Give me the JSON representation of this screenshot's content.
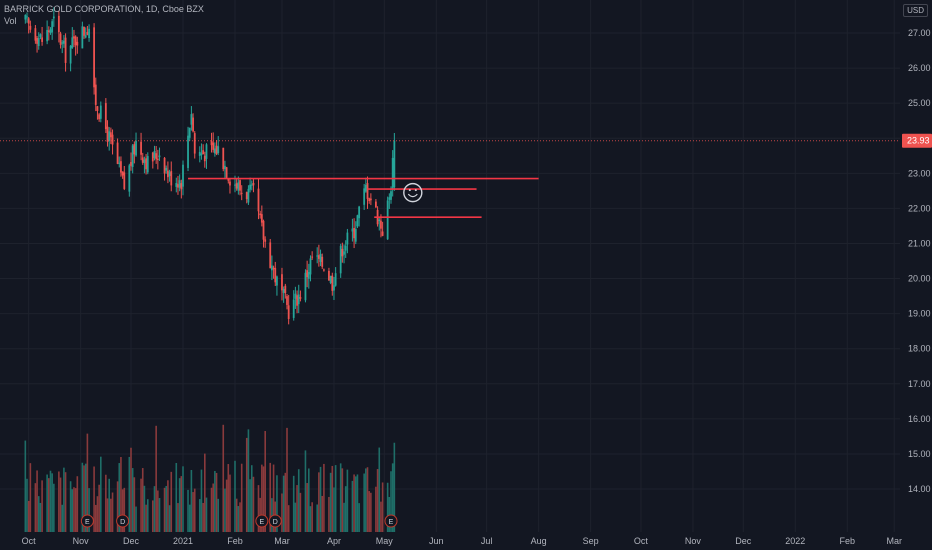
{
  "header": {
    "symbol_line": "BARRICK GOLD CORPORATION, 1D, Cboe BZX",
    "volume_label": "Vol",
    "currency": "USD"
  },
  "colors": {
    "background": "#131722",
    "grid": "#1e222d",
    "up": "#26a69a",
    "down": "#ef5350",
    "up_volume": "#1f6e68",
    "down_volume": "#8a3a3c",
    "drawing": "#f23645",
    "axis_text": "#b2b5be"
  },
  "chart_data": {
    "type": "candlestick",
    "y_ticks": [
      "27.00",
      "26.00",
      "25.00",
      "24.00",
      "23.00",
      "22.00",
      "21.00",
      "20.00",
      "19.00",
      "18.00",
      "17.00",
      "16.00",
      "15.00",
      "14.00"
    ],
    "x_ticks": [
      "Oct",
      "Nov",
      "Dec",
      "2021",
      "Feb",
      "Mar",
      "Apr",
      "May",
      "Jun",
      "Jul",
      "Aug",
      "Sep",
      "Oct",
      "Nov",
      "Dec",
      "2022",
      "Feb",
      "Mar"
    ],
    "ylim": [
      13.3,
      27.8
    ],
    "last_price": "23.93",
    "last_value": 23.93,
    "grid": true,
    "horizontal_lines": [
      {
        "from": "2021-01-04",
        "to": "2021-08-01",
        "value": 22.85
      },
      {
        "from": "2021-04-21",
        "to": "2021-06-25",
        "value": 22.55
      },
      {
        "from": "2021-04-25",
        "to": "2021-06-28",
        "value": 21.75
      }
    ],
    "annotation": {
      "kind": "smiley",
      "date": "2021-05-18",
      "value": 22.45
    },
    "event_markers": [
      {
        "label": "E",
        "date": "2020-11-05"
      },
      {
        "label": "D",
        "date": "2020-11-26"
      },
      {
        "label": "E",
        "date": "2021-02-17"
      },
      {
        "label": "D",
        "date": "2021-02-25"
      },
      {
        "label": "E",
        "date": "2021-05-05"
      }
    ],
    "anchors": [
      [
        "2020-09-29",
        27.3
      ],
      [
        "2020-10-09",
        26.8
      ],
      [
        "2020-10-16",
        27.3
      ],
      [
        "2020-10-23",
        26.4
      ],
      [
        "2020-10-30",
        26.9
      ],
      [
        "2020-11-06",
        27.2
      ],
      [
        "2020-11-09",
        25.2
      ],
      [
        "2020-11-18",
        24.0
      ],
      [
        "2020-11-27",
        22.6
      ],
      [
        "2020-12-04",
        23.9
      ],
      [
        "2020-12-11",
        23.3
      ],
      [
        "2020-12-18",
        23.6
      ],
      [
        "2020-12-24",
        22.9
      ],
      [
        "2020-12-31",
        22.8
      ],
      [
        "2021-01-06",
        24.8
      ],
      [
        "2021-01-08",
        23.6
      ],
      [
        "2021-01-15",
        23.6
      ],
      [
        "2021-01-22",
        23.7
      ],
      [
        "2021-01-29",
        22.9
      ],
      [
        "2021-02-05",
        22.5
      ],
      [
        "2021-02-12",
        22.4
      ],
      [
        "2021-02-18",
        21.2
      ],
      [
        "2021-02-26",
        19.9
      ],
      [
        "2021-03-05",
        19.1
      ],
      [
        "2021-03-12",
        19.6
      ],
      [
        "2021-03-19",
        20.6
      ],
      [
        "2021-03-26",
        20.4
      ],
      [
        "2021-03-31",
        19.9
      ],
      [
        "2021-04-06",
        20.9
      ],
      [
        "2021-04-13",
        21.4
      ],
      [
        "2021-04-20",
        22.6
      ],
      [
        "2021-04-23",
        22.3
      ],
      [
        "2021-04-30",
        21.4
      ],
      [
        "2021-05-04",
        22.3
      ],
      [
        "2021-05-05",
        22.7
      ],
      [
        "2021-05-06",
        23.3
      ],
      [
        "2021-05-07",
        23.93
      ]
    ]
  }
}
